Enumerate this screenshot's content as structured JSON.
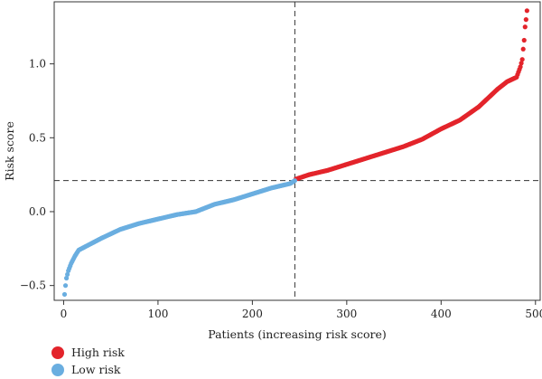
{
  "chart_data": {
    "type": "scatter",
    "title": "",
    "xlabel": "Patients (increasing risk score)",
    "ylabel": "Risk score",
    "xlim": [
      -10,
      505
    ],
    "ylim": [
      -0.6,
      1.42
    ],
    "xticks": [
      0,
      100,
      200,
      300,
      400,
      500
    ],
    "yticks": [
      -0.5,
      0.0,
      0.5,
      1.0
    ],
    "ytick_labels": [
      "−0.5",
      "0.0",
      "0.5",
      "1.0"
    ],
    "grid": false,
    "n_patients": 491,
    "cutoff_index": 245,
    "cutoff_score": 0.21,
    "legend_position": "bottom-left",
    "series": [
      {
        "name": "High risk",
        "color": "#e3242b",
        "x_range": [
          246,
          491
        ],
        "curve_x": [
          246,
          260,
          280,
          300,
          320,
          340,
          360,
          380,
          400,
          420,
          440,
          460,
          470,
          480,
          484,
          486,
          487,
          488,
          489,
          490,
          491
        ],
        "curve_y": [
          0.22,
          0.25,
          0.28,
          0.32,
          0.36,
          0.4,
          0.44,
          0.49,
          0.56,
          0.62,
          0.71,
          0.83,
          0.88,
          0.91,
          0.98,
          1.03,
          1.1,
          1.16,
          1.25,
          1.3,
          1.36
        ]
      },
      {
        "name": "Low risk",
        "color": "#6aaee0",
        "x_range": [
          1,
          245
        ],
        "curve_x": [
          1,
          2,
          3,
          5,
          8,
          12,
          16,
          25,
          40,
          60,
          80,
          100,
          120,
          140,
          160,
          180,
          200,
          220,
          240,
          245
        ],
        "curve_y": [
          -0.56,
          -0.5,
          -0.45,
          -0.4,
          -0.35,
          -0.3,
          -0.26,
          -0.23,
          -0.18,
          -0.12,
          -0.08,
          -0.05,
          -0.02,
          0.0,
          0.05,
          0.08,
          0.12,
          0.16,
          0.19,
          0.21
        ]
      }
    ]
  }
}
